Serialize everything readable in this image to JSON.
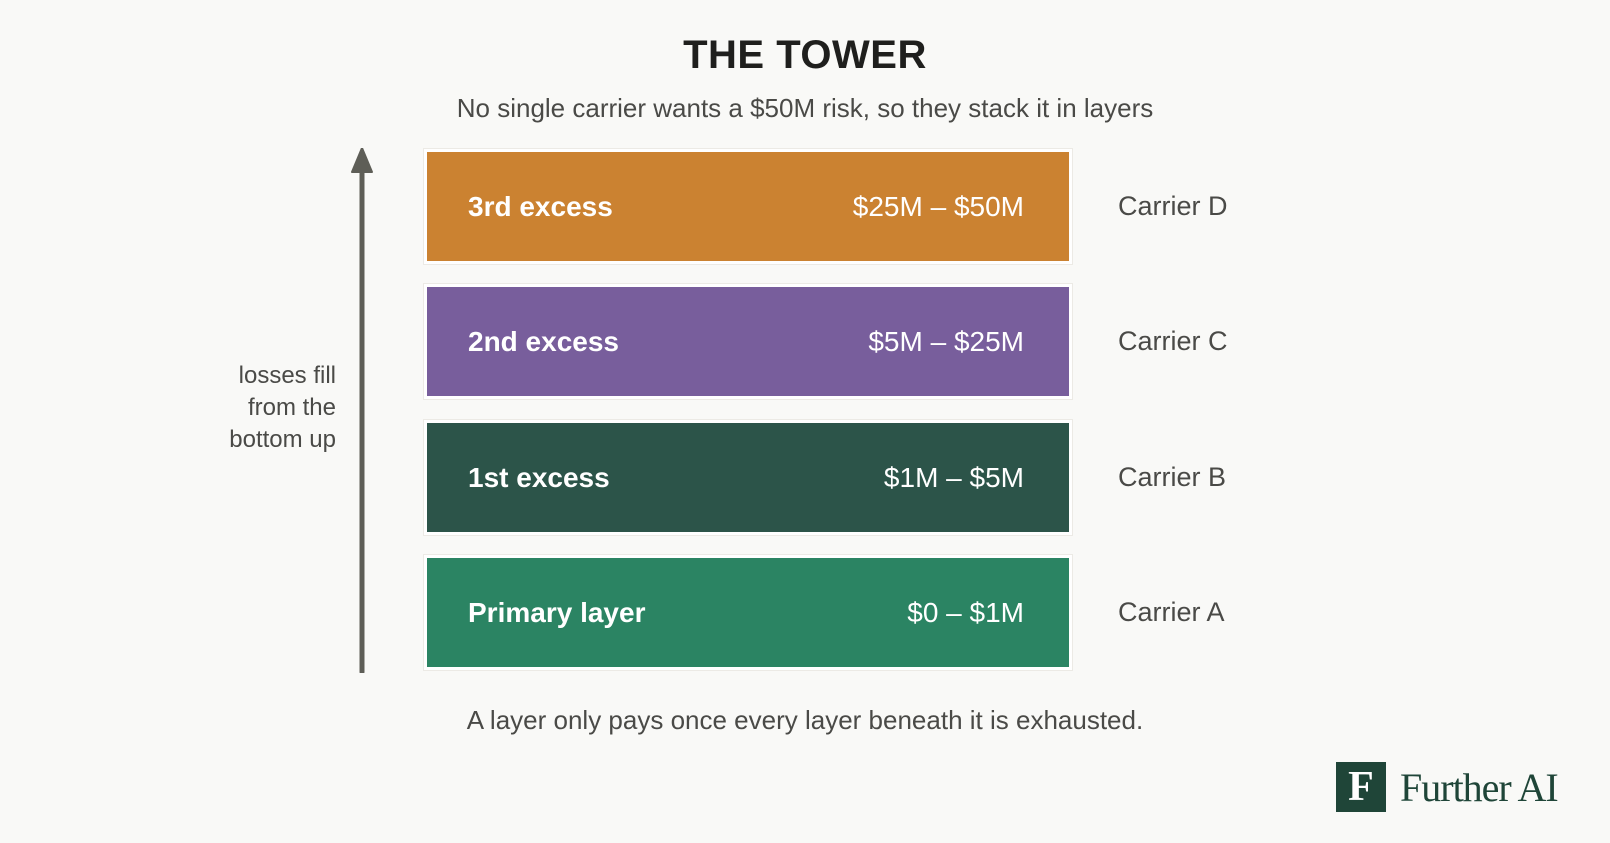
{
  "header": {
    "title": "THE TOWER",
    "subtitle": "No single carrier wants a $50M risk, so they stack it in layers"
  },
  "arrow": {
    "label_lines": [
      "losses fill",
      "from the",
      "bottom up"
    ],
    "color": "#5e5e57"
  },
  "layers": [
    {
      "name": "3rd excess",
      "range": "$25M – $50M",
      "carrier": "Carrier D",
      "color": "#cb8231"
    },
    {
      "name": "2nd excess",
      "range": "$5M – $25M",
      "carrier": "Carrier C",
      "color": "#785e9c"
    },
    {
      "name": "1st excess",
      "range": "$1M – $5M",
      "carrier": "Carrier B",
      "color": "#2c5449"
    },
    {
      "name": "Primary layer",
      "range": "$0 – $1M",
      "carrier": "Carrier A",
      "color": "#2b8463"
    }
  ],
  "footnote": "A layer only pays once every layer beneath it is exhausted.",
  "logo": {
    "mark": "F",
    "text": "Further AI",
    "color": "#1f4538"
  }
}
